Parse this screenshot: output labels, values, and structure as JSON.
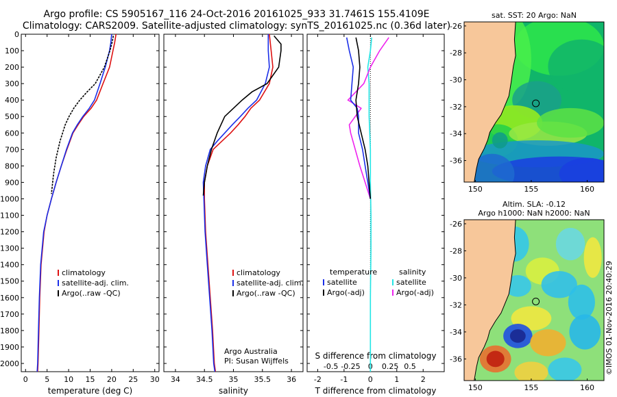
{
  "header": {
    "title_line1": "Argo profile: CS 5905167_116 24-Oct-2016 20161025_933 31.7461S 155.4109E",
    "title_line2": "Climatology: CARS2009. Satellite-adjusted climatology: synTS_20161025.nc (0.36d later)"
  },
  "footer": {
    "stamp": "©IMOS 01-Nov-2016 20:40:29"
  },
  "colors": {
    "climatology": "#dd1111",
    "satellite": "#1a2ee8",
    "argo": "#000000",
    "sat_diff": "#1a2ee8",
    "argo_diff": "#000000",
    "sal_sat_diff": "#22e5e5",
    "sal_argo_diff": "#ee22ee"
  },
  "chart_data": [
    {
      "type": "line",
      "id": "temperature",
      "xlabel": "temperature (deg C)",
      "ylabel": "",
      "xlim": [
        -1,
        31
      ],
      "ylim": [
        2050,
        0
      ],
      "xticks": [
        0,
        5,
        10,
        15,
        20,
        25,
        30
      ],
      "yticks": [
        0,
        100,
        200,
        300,
        400,
        500,
        600,
        700,
        800,
        900,
        1000,
        1100,
        1200,
        1300,
        1400,
        1500,
        1600,
        1700,
        1800,
        1900,
        2000
      ],
      "legend": [
        "climatology",
        "satellite-adj. clim.",
        "Argo(..raw -QC)"
      ],
      "series": [
        {
          "name": "climatology",
          "x": [
            21,
            20.7,
            20.3,
            19.5,
            18,
            16.5,
            15.2,
            13.5,
            12.2,
            11,
            9.6,
            8.3,
            7.1,
            6,
            5,
            4.3,
            3.6,
            3.3,
            3.1,
            2.9,
            2.8
          ],
          "y": [
            0,
            50,
            100,
            200,
            300,
            400,
            450,
            500,
            550,
            600,
            700,
            800,
            900,
            1000,
            1100,
            1200,
            1400,
            1600,
            1800,
            2000,
            2050
          ]
        },
        {
          "name": "satellite-adj. clim.",
          "x": [
            20,
            19.8,
            19.5,
            18.5,
            17.3,
            16,
            14.8,
            13.3,
            12,
            10.9,
            9.5,
            8.3,
            7.1,
            6,
            5,
            4.2,
            3.5,
            3.2,
            3,
            2.8,
            2.7
          ],
          "y": [
            0,
            50,
            100,
            200,
            300,
            400,
            450,
            500,
            550,
            600,
            700,
            800,
            900,
            1000,
            1100,
            1200,
            1400,
            1600,
            1800,
            2000,
            2050
          ]
        },
        {
          "name": "Argo(..raw -QC)",
          "x": [
            20.4,
            20.1,
            19.6,
            18.3,
            16.2,
            14.3,
            12.6,
            11.2,
            10.1,
            9.2,
            8,
            7.1,
            6.5,
            6
          ],
          "y": [
            10,
            50,
            100,
            200,
            300,
            350,
            400,
            450,
            500,
            550,
            650,
            750,
            850,
            970
          ]
        }
      ]
    },
    {
      "type": "line",
      "id": "salinity",
      "xlabel": "salinity",
      "ylabel": "",
      "xlim": [
        33.8,
        36.2
      ],
      "ylim": [
        2050,
        0
      ],
      "xticks": [
        34,
        34.5,
        35,
        35.5,
        36
      ],
      "legend": [
        "climatology",
        "satellite-adj. clim.",
        "Argo(..raw -QC)"
      ],
      "annotation": [
        "Argo Australia",
        "PI: Susan Wijffels"
      ],
      "series": [
        {
          "name": "climatology",
          "x": [
            35.62,
            35.65,
            35.68,
            35.62,
            35.45,
            35.3,
            35.2,
            35.08,
            34.95,
            34.8,
            34.65,
            34.55,
            34.5,
            34.5,
            34.52,
            34.56,
            34.6,
            34.64,
            34.67,
            34.69
          ],
          "y": [
            0,
            100,
            200,
            300,
            400,
            450,
            500,
            550,
            600,
            650,
            700,
            800,
            900,
            1000,
            1200,
            1400,
            1600,
            1800,
            2000,
            2050
          ]
        },
        {
          "name": "satellite-adj. clim.",
          "x": [
            35.6,
            35.6,
            35.62,
            35.55,
            35.4,
            35.25,
            35.12,
            34.98,
            34.85,
            34.72,
            34.6,
            34.52,
            34.48,
            34.49,
            34.51,
            34.55,
            34.59,
            34.63,
            34.66,
            34.68
          ],
          "y": [
            0,
            100,
            200,
            300,
            400,
            450,
            500,
            550,
            600,
            650,
            700,
            800,
            900,
            1000,
            1200,
            1400,
            1600,
            1800,
            2000,
            2050
          ]
        },
        {
          "name": "Argo(..raw -QC)",
          "x": [
            35.7,
            35.82,
            35.82,
            35.78,
            35.58,
            35.32,
            35.15,
            35.0,
            34.85,
            34.72,
            34.62,
            34.55,
            34.5,
            34.48
          ],
          "y": [
            10,
            60,
            100,
            200,
            300,
            350,
            400,
            450,
            500,
            600,
            700,
            800,
            900,
            980
          ]
        }
      ]
    },
    {
      "type": "line",
      "id": "difference",
      "xlabel": "T difference from climatology",
      "xlabel_top": "S difference from climatology",
      "ylabel": "",
      "xlim": [
        -2.4,
        2.8
      ],
      "ylim": [
        2050,
        0
      ],
      "xticks": [
        -2,
        -1,
        0,
        1,
        2
      ],
      "xticks_top": [
        "-0.5",
        "-0.25",
        "0",
        "0.25",
        "0.5"
      ],
      "legend_temperature": [
        "temperature",
        "satellite",
        "Argo(-adj)"
      ],
      "legend_salinity": [
        "salinity",
        "satellite",
        "Argo(-adj)"
      ],
      "series": [
        {
          "name": "temperature satellite",
          "x": [
            -0.9,
            -0.8,
            -0.65,
            -0.7,
            -0.75,
            -0.5,
            -0.45,
            -0.45,
            -0.3,
            -0.2,
            -0.1,
            0
          ],
          "y": [
            20,
            100,
            200,
            300,
            400,
            450,
            500,
            600,
            700,
            800,
            900,
            1000
          ]
        },
        {
          "name": "temperature Argo(-adj)",
          "x": [
            -0.55,
            -0.45,
            -0.4,
            -0.45,
            -0.55,
            -0.5,
            -0.35,
            -0.2,
            -0.1,
            0
          ],
          "y": [
            20,
            100,
            200,
            300,
            400,
            500,
            600,
            700,
            800,
            1000
          ]
        },
        {
          "name": "salinity satellite",
          "x": [
            0.05,
            0.0,
            -0.1,
            -0.05,
            -0.05,
            -0.05,
            0.0,
            0.0,
            0.02,
            0.02,
            0.0,
            0.0,
            0.0
          ],
          "y": [
            20,
            100,
            200,
            300,
            400,
            500,
            700,
            900,
            1100,
            1300,
            1600,
            1900,
            2050
          ]
        },
        {
          "name": "salinity Argo(-adj)",
          "x": [
            0.7,
            0.35,
            0.0,
            -0.25,
            -0.85,
            -0.35,
            -0.8,
            -0.75,
            -0.4,
            0.0
          ],
          "y": [
            20,
            100,
            200,
            300,
            400,
            450,
            550,
            600,
            800,
            1000
          ]
        }
      ]
    },
    {
      "type": "heatmap",
      "id": "sst_map",
      "title": "sat. SST: 20 Argo: NaN",
      "xlim": [
        149,
        161.5
      ],
      "ylim": [
        -37.6,
        -25.7
      ],
      "xticks": [
        150,
        155,
        160
      ],
      "yticks": [
        -26,
        -28,
        -30,
        -32,
        -34,
        -36
      ],
      "argo_position": [
        155.41,
        -31.75
      ]
    },
    {
      "type": "heatmap",
      "id": "sla_map",
      "title": "Altim. SLA: -0.12",
      "subtitle": "Argo h1000: NaN h2000: NaN",
      "xlim": [
        149,
        161.5
      ],
      "ylim": [
        -37.6,
        -25.7
      ],
      "xticks": [
        150,
        155,
        160
      ],
      "yticks": [
        -26,
        -28,
        -30,
        -32,
        -34,
        -36
      ],
      "argo_position": [
        155.41,
        -31.75
      ]
    }
  ]
}
